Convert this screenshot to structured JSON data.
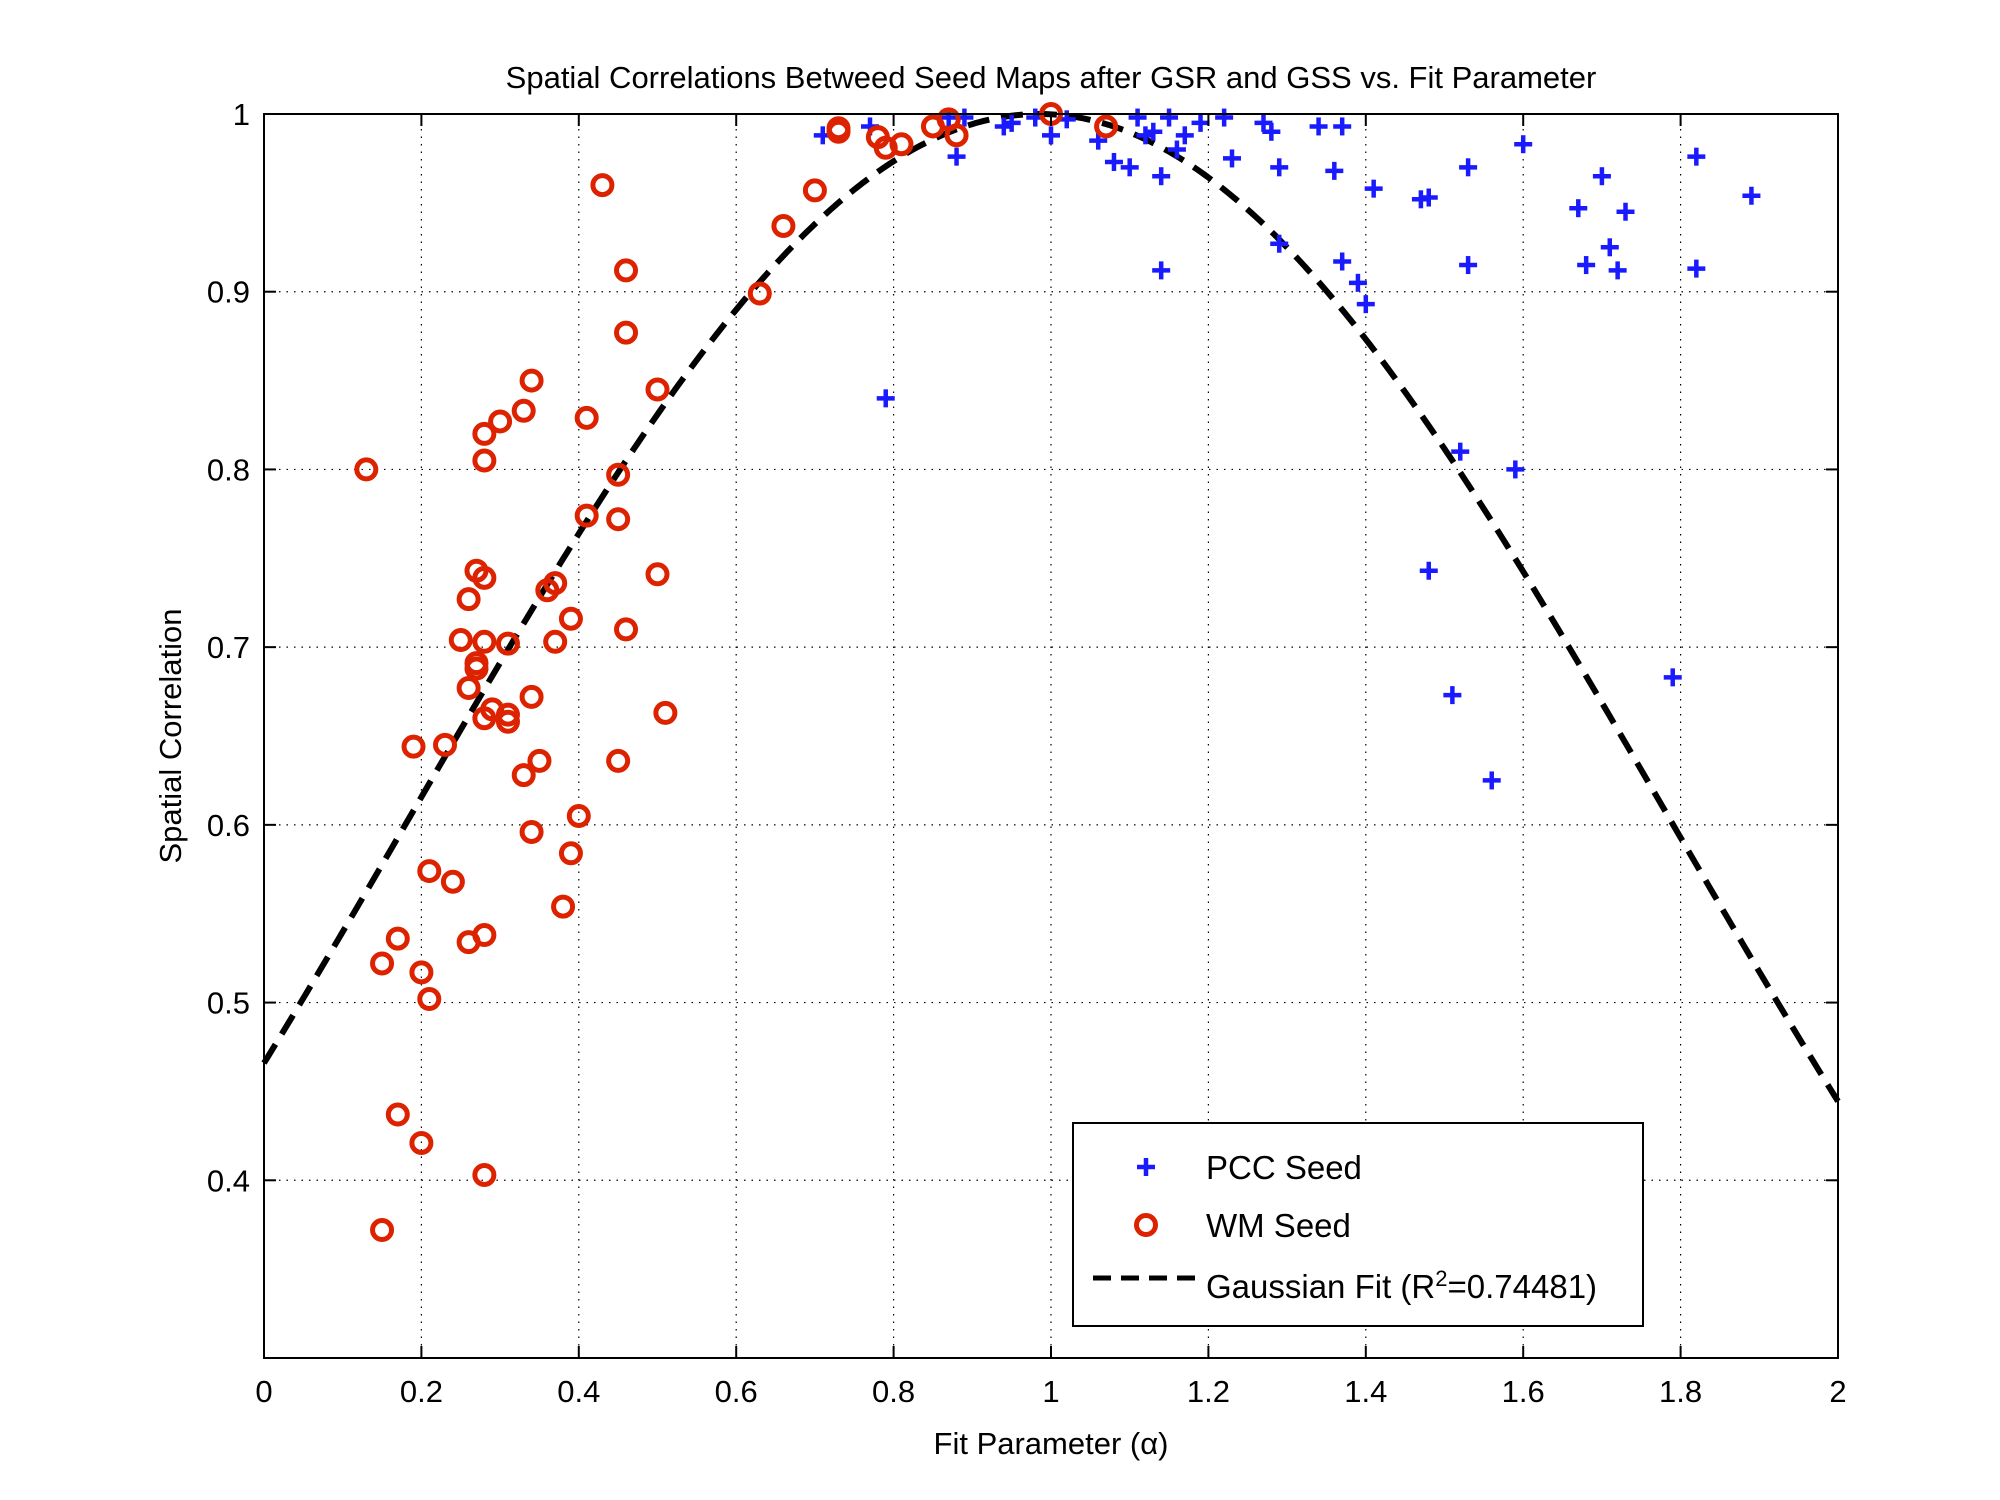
{
  "chart_data": {
    "type": "scatter",
    "title": "Spatial Correlations Betweed Seed Maps after GSR and GSS vs. Fit Parameter",
    "xlabel": "Fit Parameter (α)",
    "ylabel": "Spatial Correlation",
    "xlim": [
      0,
      2
    ],
    "ylim": [
      0.3,
      1
    ],
    "xticks": [
      0,
      0.2,
      0.4,
      0.6,
      0.8,
      1,
      1.2,
      1.4,
      1.6,
      1.8,
      2
    ],
    "xtick_labels": [
      "0",
      "0.2",
      "0.4",
      "0.6",
      "0.8",
      "1",
      "1.2",
      "1.4",
      "1.6",
      "1.8",
      "2"
    ],
    "yticks": [
      0.4,
      0.5,
      0.6,
      0.7,
      0.8,
      0.9,
      1
    ],
    "ytick_labels": [
      "0.4",
      "0.5",
      "0.6",
      "0.7",
      "0.8",
      "0.9",
      "1"
    ],
    "grid": true,
    "legend_position": "bottom-right",
    "series": [
      {
        "name": "PCC Seed",
        "marker": "plus",
        "color": "#1a1aff",
        "points": [
          [
            0.71,
            0.988
          ],
          [
            0.77,
            0.993
          ],
          [
            0.79,
            0.84
          ],
          [
            0.87,
            0.998
          ],
          [
            0.88,
            0.976
          ],
          [
            0.89,
            0.998
          ],
          [
            0.94,
            0.993
          ],
          [
            0.95,
            0.995
          ],
          [
            0.98,
            0.998
          ],
          [
            1.0,
            0.988
          ],
          [
            1.02,
            0.997
          ],
          [
            1.06,
            0.985
          ],
          [
            1.08,
            0.973
          ],
          [
            1.1,
            0.97
          ],
          [
            1.11,
            0.998
          ],
          [
            1.12,
            0.988
          ],
          [
            1.13,
            0.99
          ],
          [
            1.14,
            0.965
          ],
          [
            1.14,
            0.912
          ],
          [
            1.15,
            0.998
          ],
          [
            1.16,
            0.98
          ],
          [
            1.17,
            0.988
          ],
          [
            1.19,
            0.995
          ],
          [
            1.22,
            0.998
          ],
          [
            1.23,
            0.975
          ],
          [
            1.27,
            0.995
          ],
          [
            1.28,
            0.99
          ],
          [
            1.29,
            0.97
          ],
          [
            1.29,
            0.927
          ],
          [
            1.34,
            0.993
          ],
          [
            1.36,
            0.968
          ],
          [
            1.37,
            0.993
          ],
          [
            1.37,
            0.917
          ],
          [
            1.39,
            0.905
          ],
          [
            1.4,
            0.893
          ],
          [
            1.41,
            0.958
          ],
          [
            1.47,
            0.952
          ],
          [
            1.48,
            0.953
          ],
          [
            1.48,
            0.743
          ],
          [
            1.51,
            0.673
          ],
          [
            1.52,
            0.81
          ],
          [
            1.53,
            0.97
          ],
          [
            1.53,
            0.915
          ],
          [
            1.56,
            0.625
          ],
          [
            1.59,
            0.8
          ],
          [
            1.6,
            0.983
          ],
          [
            1.67,
            0.947
          ],
          [
            1.68,
            0.915
          ],
          [
            1.7,
            0.965
          ],
          [
            1.71,
            0.925
          ],
          [
            1.72,
            0.912
          ],
          [
            1.73,
            0.945
          ],
          [
            1.79,
            0.683
          ],
          [
            1.82,
            0.976
          ],
          [
            1.82,
            0.913
          ],
          [
            1.89,
            0.954
          ]
        ]
      },
      {
        "name": "WM Seed",
        "marker": "circle",
        "color": "#dd2200",
        "points": [
          [
            0.13,
            0.8
          ],
          [
            0.15,
            0.372
          ],
          [
            0.15,
            0.522
          ],
          [
            0.17,
            0.536
          ],
          [
            0.17,
            0.437
          ],
          [
            0.19,
            0.644
          ],
          [
            0.2,
            0.517
          ],
          [
            0.2,
            0.421
          ],
          [
            0.21,
            0.574
          ],
          [
            0.21,
            0.502
          ],
          [
            0.23,
            0.645
          ],
          [
            0.24,
            0.568
          ],
          [
            0.25,
            0.704
          ],
          [
            0.26,
            0.727
          ],
          [
            0.26,
            0.534
          ],
          [
            0.26,
            0.677
          ],
          [
            0.27,
            0.743
          ],
          [
            0.27,
            0.688
          ],
          [
            0.27,
            0.691
          ],
          [
            0.28,
            0.82
          ],
          [
            0.28,
            0.805
          ],
          [
            0.28,
            0.703
          ],
          [
            0.28,
            0.739
          ],
          [
            0.28,
            0.66
          ],
          [
            0.28,
            0.538
          ],
          [
            0.28,
            0.403
          ],
          [
            0.29,
            0.665
          ],
          [
            0.3,
            0.827
          ],
          [
            0.31,
            0.702
          ],
          [
            0.31,
            0.662
          ],
          [
            0.31,
            0.658
          ],
          [
            0.33,
            0.833
          ],
          [
            0.33,
            0.628
          ],
          [
            0.34,
            0.85
          ],
          [
            0.34,
            0.672
          ],
          [
            0.34,
            0.596
          ],
          [
            0.35,
            0.636
          ],
          [
            0.36,
            0.732
          ],
          [
            0.37,
            0.736
          ],
          [
            0.37,
            0.703
          ],
          [
            0.38,
            0.554
          ],
          [
            0.39,
            0.584
          ],
          [
            0.39,
            0.716
          ],
          [
            0.4,
            0.605
          ],
          [
            0.41,
            0.774
          ],
          [
            0.41,
            0.829
          ],
          [
            0.43,
            0.96
          ],
          [
            0.45,
            0.797
          ],
          [
            0.45,
            0.772
          ],
          [
            0.45,
            0.636
          ],
          [
            0.46,
            0.912
          ],
          [
            0.46,
            0.877
          ],
          [
            0.46,
            0.71
          ],
          [
            0.5,
            0.845
          ],
          [
            0.5,
            0.741
          ],
          [
            0.51,
            0.663
          ],
          [
            0.63,
            0.899
          ],
          [
            0.66,
            0.937
          ],
          [
            0.7,
            0.957
          ],
          [
            0.73,
            0.99
          ],
          [
            0.73,
            0.992
          ],
          [
            0.78,
            0.987
          ],
          [
            0.79,
            0.981
          ],
          [
            0.81,
            0.983
          ],
          [
            0.85,
            0.993
          ],
          [
            0.87,
            0.997
          ],
          [
            0.88,
            0.988
          ],
          [
            1.0,
            1.0
          ],
          [
            1.07,
            0.993
          ]
        ]
      }
    ],
    "fit": {
      "name": "Gaussian Fit (R",
      "name_sup": "2",
      "name_tail": "=0.74481)",
      "r_squared": 0.74481,
      "model": "gaussian",
      "amplitude": 1.0,
      "center": 0.985,
      "sigma": 0.797,
      "color": "#000000"
    }
  }
}
